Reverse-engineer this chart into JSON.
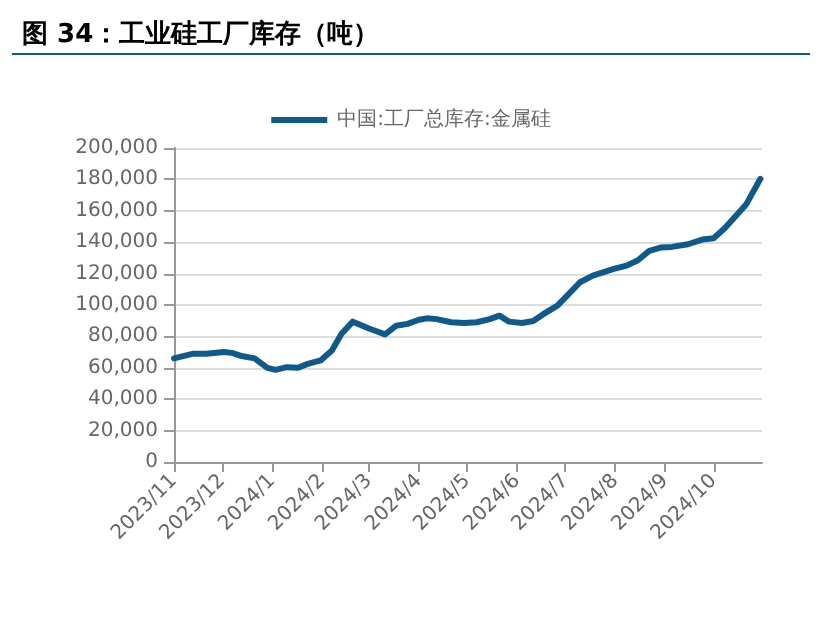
{
  "chart_data": {
    "type": "line",
    "title": "图 34：工业硅工厂库存（吨）",
    "x": [
      "2023-11-01",
      "2023-11-13",
      "2023-11-21",
      "2023-12-02",
      "2023-12-07",
      "2023-12-13",
      "2023-12-21",
      "2023-12-29",
      "2024-01-03",
      "2024-01-10",
      "2024-01-17",
      "2024-01-23",
      "2024-01-31",
      "2024-02-07",
      "2024-02-13",
      "2024-02-20",
      "2024-03-01",
      "2024-03-11",
      "2024-03-18",
      "2024-03-25",
      "2024-04-01",
      "2024-04-06",
      "2024-04-12",
      "2024-04-21",
      "2024-04-29",
      "2024-05-07",
      "2024-05-15",
      "2024-05-21",
      "2024-05-27",
      "2024-06-04",
      "2024-06-11",
      "2024-06-17",
      "2024-06-26",
      "2024-07-04",
      "2024-07-10",
      "2024-07-18",
      "2024-07-31",
      "2024-08-08",
      "2024-08-15",
      "2024-08-22",
      "2024-08-29",
      "2024-09-05",
      "2024-09-15",
      "2024-09-24",
      "2024-10-01",
      "2024-10-08",
      "2024-10-21",
      "2024-10-30"
    ],
    "series": [
      {
        "name": "中国:工厂总库存:金属硅",
        "color": "#0e5a8a",
        "values": [
          66000,
          69000,
          69000,
          70000,
          69500,
          67500,
          66000,
          60000,
          58700,
          60400,
          60000,
          62500,
          64700,
          71000,
          81700,
          89400,
          85000,
          81300,
          86800,
          88000,
          90600,
          91500,
          91000,
          89000,
          88500,
          89000,
          91000,
          93200,
          89400,
          88500,
          89800,
          94000,
          99600,
          108000,
          114500,
          118700,
          123000,
          125100,
          128500,
          134500,
          136600,
          137000,
          138700,
          141700,
          142500,
          149000,
          163800,
          180400
        ]
      }
    ],
    "xlim": [
      "2023-11-01",
      "2024-10-31"
    ],
    "xticks": [
      {
        "value": "2023-11-01",
        "label": "2023/11"
      },
      {
        "value": "2023-12-01",
        "label": "2023/12"
      },
      {
        "value": "2024-01-01",
        "label": "2024/1"
      },
      {
        "value": "2024-02-01",
        "label": "2024/2"
      },
      {
        "value": "2024-03-01",
        "label": "2024/3"
      },
      {
        "value": "2024-04-01",
        "label": "2024/4"
      },
      {
        "value": "2024-05-01",
        "label": "2024/5"
      },
      {
        "value": "2024-06-01",
        "label": "2024/6"
      },
      {
        "value": "2024-07-01",
        "label": "2024/7"
      },
      {
        "value": "2024-08-01",
        "label": "2024/8"
      },
      {
        "value": "2024-09-01",
        "label": "2024/9"
      },
      {
        "value": "2024-10-01",
        "label": "2024/10"
      }
    ],
    "ylim": [
      0,
      200000
    ],
    "yticks": [
      {
        "value": 0,
        "label": "0"
      },
      {
        "value": 20000,
        "label": "20,000"
      },
      {
        "value": 40000,
        "label": "40,000"
      },
      {
        "value": 60000,
        "label": "60,000"
      },
      {
        "value": 80000,
        "label": "80,000"
      },
      {
        "value": 100000,
        "label": "100,000"
      },
      {
        "value": 120000,
        "label": "120,000"
      },
      {
        "value": 140000,
        "label": "140,000"
      },
      {
        "value": 160000,
        "label": "160,000"
      },
      {
        "value": 180000,
        "label": "180,000"
      },
      {
        "value": 200000,
        "label": "200,000"
      }
    ],
    "grid": "y",
    "legend": "top",
    "marker": "none",
    "line_style": "solid"
  }
}
